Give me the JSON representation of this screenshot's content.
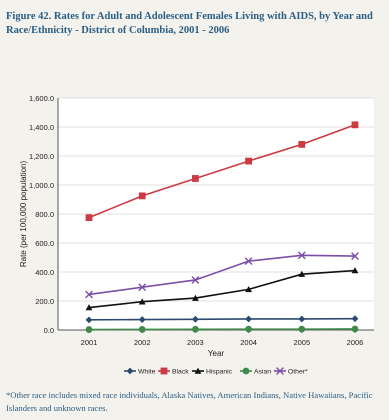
{
  "figure": {
    "title": "Figure 42. Rates for Adult and Adolescent Females Living with AIDS, by Year and Race/Ethnicity - District of Columbia, 2001 - 2006",
    "footnote": "*Other race includes mixed race individuals, Alaska Natives, American Indians, Native Hawaiians, Pacific Islanders and unknown races."
  },
  "chart_data": {
    "type": "line",
    "title": "",
    "xlabel": "Year",
    "ylabel": "Rate (per 100,000 population)",
    "x": [
      "2001",
      "2002",
      "2003",
      "2004",
      "2005",
      "2006"
    ],
    "ylim": [
      0,
      1600
    ],
    "yticks": [
      0,
      200,
      400,
      600,
      800,
      1000,
      1200,
      1400,
      1600
    ],
    "ytick_labels": [
      "0.0",
      "200.0",
      "400.0",
      "600.0",
      "800.0",
      "1,000.0",
      "1,200.0",
      "1,400.0",
      "1,600.0"
    ],
    "grid": true,
    "legend_position": "bottom",
    "series": [
      {
        "name": "White",
        "values": [
          70,
          72,
          74,
          76,
          76,
          78
        ],
        "color": "#2c4a6e",
        "marker": "diamond"
      },
      {
        "name": "Black",
        "values": [
          775,
          925,
          1045,
          1165,
          1280,
          1415
        ],
        "color": "#cc3a42",
        "marker": "square"
      },
      {
        "name": "Hispanic",
        "values": [
          155,
          195,
          220,
          280,
          385,
          410
        ],
        "color": "#111111",
        "marker": "triangle"
      },
      {
        "name": "Asian",
        "values": [
          3,
          4,
          5,
          6,
          6,
          7
        ],
        "color": "#3f8a4a",
        "marker": "circle"
      },
      {
        "name": "Other*",
        "values": [
          245,
          295,
          345,
          475,
          515,
          510
        ],
        "color": "#7b4ea8",
        "marker": "x"
      }
    ]
  }
}
